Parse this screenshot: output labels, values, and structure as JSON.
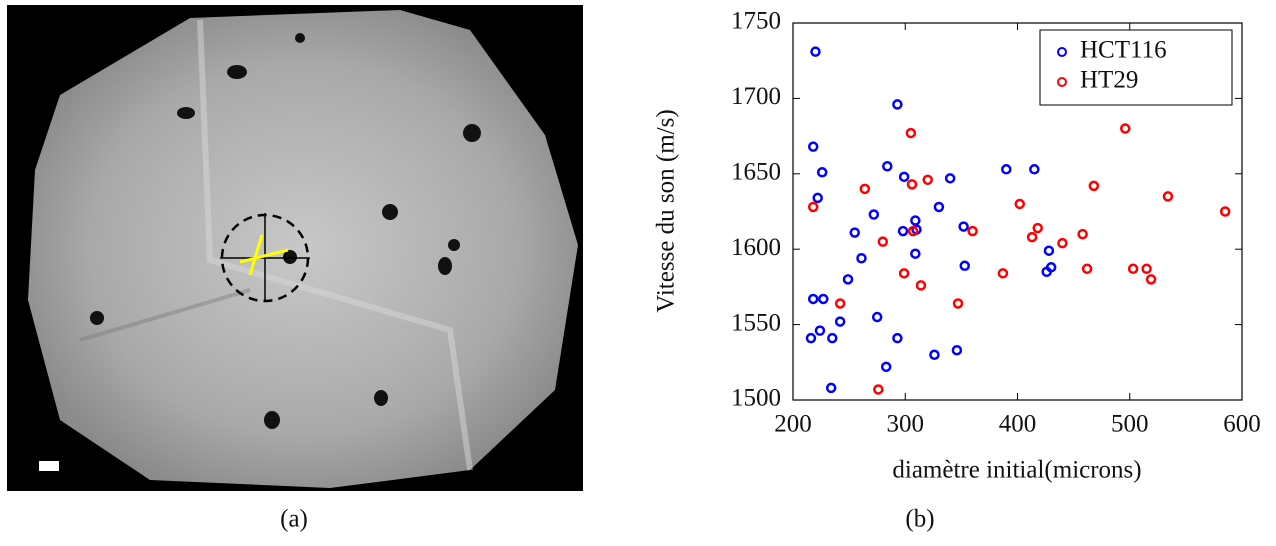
{
  "chart_data": {
    "type": "scatter",
    "xlabel": "diamètre initial(microns)",
    "ylabel": "Vitesse du son (m/s)",
    "xlim": [
      200,
      600
    ],
    "xticks": [
      200,
      300,
      400,
      500,
      600
    ],
    "ylim": [
      1500,
      1750
    ],
    "yticks": [
      1500,
      1550,
      1600,
      1650,
      1700,
      1750
    ],
    "legend": "upper right",
    "series": [
      {
        "name": "HCT116",
        "color": "#0000ff",
        "x": [
          220,
          218,
          226,
          222,
          293,
          284,
          299,
          340,
          390,
          415,
          272,
          309,
          330,
          255,
          298,
          310,
          352,
          261,
          309,
          353,
          428,
          426,
          430,
          249,
          218,
          227,
          242,
          275,
          224,
          216,
          235,
          293,
          283,
          326,
          346,
          234
        ],
        "values": [
          1731,
          1668,
          1651,
          1634,
          1696,
          1655,
          1648,
          1647,
          1653,
          1653,
          1623,
          1619,
          1628,
          1611,
          1612,
          1613,
          1615,
          1594,
          1597,
          1589,
          1599,
          1585,
          1588,
          1580,
          1567,
          1567,
          1552,
          1555,
          1546,
          1541,
          1541,
          1541,
          1522,
          1530,
          1533,
          1508
        ]
      },
      {
        "name": "HT29",
        "color": "#ff0000",
        "x": [
          218,
          305,
          264,
          306,
          320,
          307,
          280,
          299,
          314,
          360,
          387,
          402,
          413,
          418,
          440,
          458,
          462,
          468,
          496,
          503,
          515,
          519,
          534,
          585,
          347,
          242,
          276
        ],
        "values": [
          1628,
          1677,
          1640,
          1643,
          1646,
          1612,
          1605,
          1584,
          1576,
          1612,
          1584,
          1630,
          1608,
          1614,
          1604,
          1610,
          1587,
          1642,
          1680,
          1587,
          1587,
          1580,
          1635,
          1625,
          1564,
          1564,
          1507
        ]
      }
    ]
  },
  "captions": [
    "(a)",
    "(b)"
  ]
}
